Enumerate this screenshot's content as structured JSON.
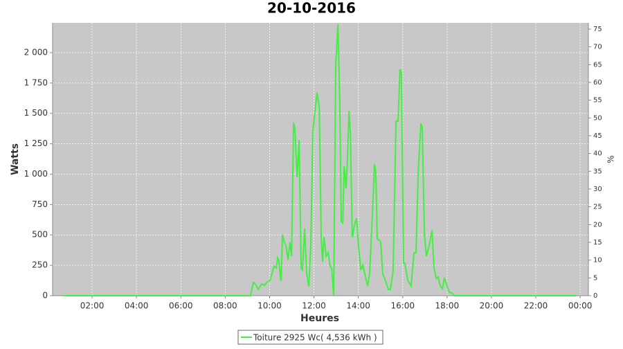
{
  "chart_data": {
    "type": "line",
    "title": "20-10-2016",
    "x_label": "Heures",
    "y_label": "Watts",
    "y2_label": "%",
    "x": [
      0.69,
      9.14,
      9.27,
      9.36,
      9.49,
      9.64,
      9.77,
      9.89,
      10.02,
      10.11,
      10.2,
      10.3,
      10.36,
      10.42,
      10.49,
      10.52,
      10.58,
      10.67,
      10.74,
      10.83,
      10.92,
      10.99,
      11.08,
      11.14,
      11.24,
      11.33,
      11.42,
      11.48,
      11.58,
      11.67,
      11.77,
      11.86,
      11.95,
      12.05,
      12.14,
      12.24,
      12.33,
      12.39,
      12.45,
      12.55,
      12.64,
      12.73,
      12.8,
      12.89,
      12.98,
      13.08,
      13.17,
      13.23,
      13.3,
      13.36,
      13.45,
      13.51,
      13.58,
      13.64,
      13.73,
      13.83,
      13.92,
      14.01,
      14.11,
      14.2,
      14.29,
      14.42,
      14.51,
      14.64,
      14.73,
      14.79,
      14.85,
      14.95,
      15.01,
      15.1,
      15.23,
      15.35,
      15.45,
      15.57,
      15.7,
      15.79,
      15.88,
      15.94,
      16.04,
      16.1,
      16.23,
      16.38,
      16.51,
      16.6,
      16.7,
      16.82,
      16.88,
      16.98,
      17.07,
      17.19,
      17.32,
      17.41,
      17.51,
      17.6,
      17.69,
      17.79,
      17.88,
      18.01,
      18.1,
      18.22,
      18.32,
      23.84
    ],
    "xlim": [
      0.22,
      24.37
    ],
    "xticks": [
      {
        "value": 2,
        "label": "02:00"
      },
      {
        "value": 4,
        "label": "04:00"
      },
      {
        "value": 6,
        "label": "06:00"
      },
      {
        "value": 8,
        "label": "08:00"
      },
      {
        "value": 10,
        "label": "10:00"
      },
      {
        "value": 12,
        "label": "12:00"
      },
      {
        "value": 14,
        "label": "14:00"
      },
      {
        "value": 16,
        "label": "16:00"
      },
      {
        "value": 18,
        "label": "18:00"
      },
      {
        "value": 20,
        "label": "20:00"
      },
      {
        "value": 22,
        "label": "22:00"
      },
      {
        "value": 24,
        "label": "00:00"
      }
    ],
    "ylim": [
      0,
      2245
    ],
    "yticks": [
      0,
      250,
      500,
      750,
      {
        "value": 1000,
        "label": "1 000"
      },
      {
        "value": 1250,
        "label": "1 250"
      },
      {
        "value": 1500,
        "label": "1 500"
      },
      {
        "value": 1750,
        "label": "1 750"
      },
      {
        "value": 2000,
        "label": "2 000"
      }
    ],
    "y2lim": [
      0,
      76.75
    ],
    "y2ticks": [
      0,
      5,
      10,
      15,
      20,
      25,
      30,
      35,
      40,
      45,
      50,
      55,
      60,
      65,
      70,
      75
    ],
    "grid": true,
    "legend": "bottom",
    "series": [
      {
        "name": "Toiture 2925 Wc( 4,536 kWh )",
        "color": "#44ee44",
        "values": [
          0,
          0,
          108,
          97,
          51,
          97,
          85,
          114,
          125,
          182,
          245,
          228,
          313,
          290,
          154,
          120,
          501,
          439,
          410,
          296,
          439,
          325,
          1425,
          1379,
          974,
          1282,
          228,
          211,
          553,
          182,
          74,
          439,
          1350,
          1521,
          1670,
          1550,
          467,
          279,
          484,
          325,
          353,
          245,
          222,
          0,
          1909,
          2234,
          1550,
          610,
          598,
          1066,
          883,
          1122,
          1521,
          1339,
          479,
          587,
          638,
          405,
          211,
          251,
          182,
          80,
          182,
          695,
          1083,
          1009,
          467,
          456,
          439,
          182,
          120,
          51,
          51,
          211,
          1436,
          1436,
          1863,
          1835,
          268,
          268,
          125,
          80,
          353,
          353,
          1020,
          1419,
          1390,
          496,
          325,
          410,
          536,
          234,
          142,
          154,
          80,
          57,
          148,
          74,
          28,
          23,
          0,
          0
        ]
      }
    ]
  }
}
